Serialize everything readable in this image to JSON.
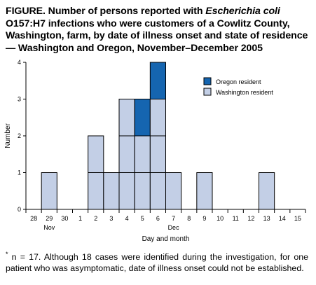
{
  "figure": {
    "title_prefix": "FIGURE. Number of persons reported with ",
    "title_italic": "Escherichia coli",
    "title_suffix": " O157:H7 infections who were customers of a Cowlitz County, Washington, farm, by date of illness onset and state of residence — Washington and Oregon, November–December 2005",
    "footnote_mark": "*",
    "footnote_text": " n = 17. Although 18 cases were identified during the investigation, for one patient who was asymptomatic, date of illness onset could not be established."
  },
  "chart_data": {
    "type": "bar",
    "stacked": true,
    "categories": [
      "28",
      "29",
      "30",
      "1",
      "2",
      "3",
      "4",
      "5",
      "6",
      "7",
      "8",
      "9",
      "10",
      "11",
      "12",
      "13",
      "14",
      "15"
    ],
    "month_labels": [
      {
        "label": "Nov",
        "category": "29"
      },
      {
        "label": "Dec",
        "category": "7"
      }
    ],
    "series": [
      {
        "name": "Washington resident",
        "color": "#c3cfe6",
        "values": [
          0,
          1,
          0,
          0,
          2,
          1,
          3,
          2,
          3,
          1,
          0,
          1,
          0,
          0,
          0,
          1,
          0,
          0
        ]
      },
      {
        "name": "Oregon resident",
        "color": "#1565b0",
        "values": [
          0,
          0,
          0,
          0,
          0,
          0,
          0,
          1,
          1,
          0,
          0,
          0,
          0,
          0,
          0,
          0,
          0,
          0
        ]
      }
    ],
    "xlabel": "Day and month",
    "ylabel": "Number",
    "ylim": [
      0,
      4
    ],
    "yticks": [
      0,
      1,
      2,
      3,
      4
    ],
    "legend_order": [
      "Oregon resident",
      "Washington resident"
    ],
    "legend_position": "top-right",
    "grid": false,
    "axis_color": "#000000"
  }
}
